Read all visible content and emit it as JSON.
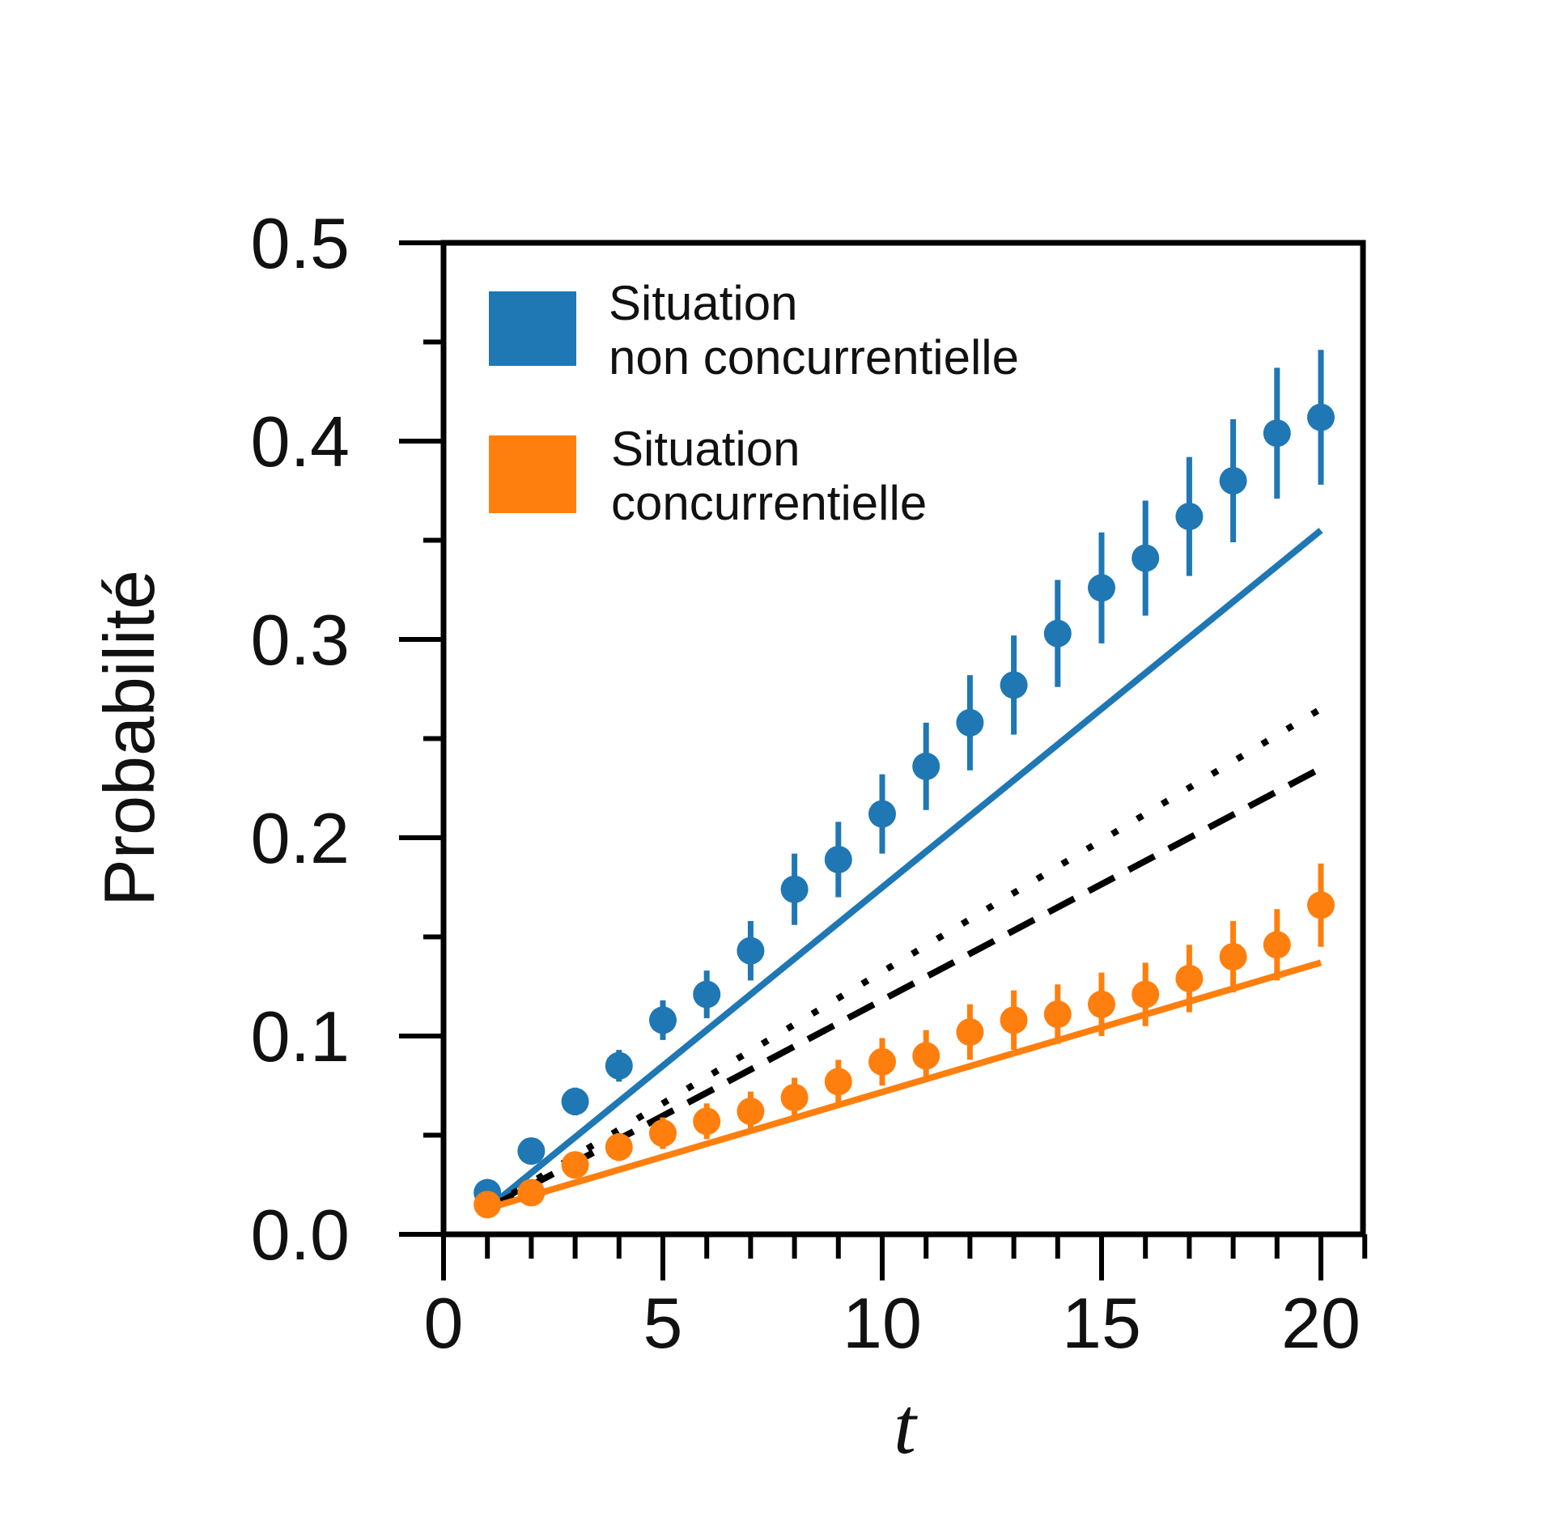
{
  "chart_data": {
    "type": "scatter",
    "xlabel": "t",
    "ylabel": "Probabilité",
    "xlim": [
      0,
      21
    ],
    "ylim": [
      0,
      0.5
    ],
    "xticks": [
      "0",
      "5",
      "10",
      "15",
      "20"
    ],
    "yticks": [
      "0.0",
      "0.1",
      "0.2",
      "0.3",
      "0.4",
      "0.5"
    ],
    "grid": false,
    "legend_position": "top-left",
    "colors": {
      "blue": "#1f77b4",
      "orange": "#ff7f0e",
      "black": "#000000"
    },
    "x": [
      1,
      2,
      3,
      4,
      5,
      6,
      7,
      8,
      9,
      10,
      11,
      12,
      13,
      14,
      15,
      16,
      17,
      18,
      19,
      20
    ],
    "series": [
      {
        "name": "Situation non concurrentielle",
        "legend_lines": [
          "Situation",
          "non concurrentielle"
        ],
        "color": "#1f77b4",
        "y": [
          0.021,
          0.042,
          0.067,
          0.085,
          0.108,
          0.121,
          0.143,
          0.174,
          0.189,
          0.212,
          0.236,
          0.258,
          0.277,
          0.303,
          0.326,
          0.341,
          0.362,
          0.38,
          0.404,
          0.412
        ],
        "err": [
          0.004,
          0.006,
          0.007,
          0.008,
          0.01,
          0.012,
          0.015,
          0.018,
          0.019,
          0.02,
          0.022,
          0.024,
          0.025,
          0.027,
          0.028,
          0.029,
          0.03,
          0.031,
          0.033,
          0.034
        ]
      },
      {
        "name": "Situation concurrentielle",
        "legend_lines": [
          "Situation",
          "concurrentielle"
        ],
        "color": "#ff7f0e",
        "y": [
          0.015,
          0.021,
          0.035,
          0.044,
          0.051,
          0.057,
          0.062,
          0.069,
          0.077,
          0.087,
          0.09,
          0.102,
          0.108,
          0.111,
          0.116,
          0.121,
          0.129,
          0.14,
          0.146,
          0.166
        ],
        "err": [
          0.004,
          0.005,
          0.006,
          0.007,
          0.008,
          0.009,
          0.01,
          0.01,
          0.011,
          0.012,
          0.013,
          0.014,
          0.015,
          0.015,
          0.016,
          0.016,
          0.017,
          0.018,
          0.018,
          0.021
        ]
      }
    ],
    "lines": [
      {
        "style": "solid",
        "color": "#1f77b4",
        "x": [
          1,
          20
        ],
        "y": [
          0.013,
          0.355
        ]
      },
      {
        "style": "dotted",
        "color": "#000000",
        "x": [
          1,
          20
        ],
        "y": [
          0.013,
          0.265
        ]
      },
      {
        "style": "dashed",
        "color": "#000000",
        "x": [
          1,
          20
        ],
        "y": [
          0.013,
          0.235
        ]
      },
      {
        "style": "solid",
        "color": "#ff7f0e",
        "x": [
          1,
          20
        ],
        "y": [
          0.013,
          0.137
        ]
      }
    ]
  }
}
